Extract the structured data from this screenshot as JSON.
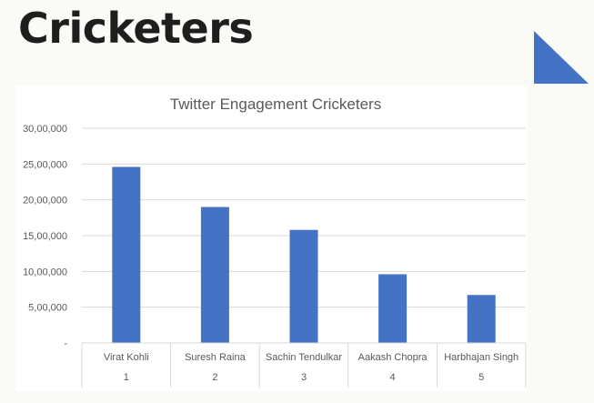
{
  "slide": {
    "title": "Cricketers"
  },
  "colors": {
    "bar": "#4472c4",
    "accent_triangle": "#4472c4",
    "gridline": "#d9d9d9",
    "text": "#595959"
  },
  "chart_data": {
    "type": "bar",
    "title": "Twitter Engagement Cricketers",
    "xlabel": "",
    "ylabel": "",
    "categories": [
      "Virat Kohli",
      "Suresh Raina",
      "Sachin Tendulkar",
      "Aakash Chopra",
      "Harbhajan Singh"
    ],
    "category_numbers": [
      "1",
      "2",
      "3",
      "4",
      "5"
    ],
    "values": [
      2460000,
      1900000,
      1580000,
      960000,
      670000
    ],
    "ylim": [
      0,
      3000000
    ],
    "yticks": [
      0,
      500000,
      1000000,
      1500000,
      2000000,
      2500000,
      3000000
    ],
    "ytick_labels": [
      "-",
      "5,00,000",
      "10,00,000",
      "15,00,000",
      "20,00,000",
      "25,00,000",
      "30,00,000"
    ],
    "grid": true,
    "legend": "none"
  }
}
